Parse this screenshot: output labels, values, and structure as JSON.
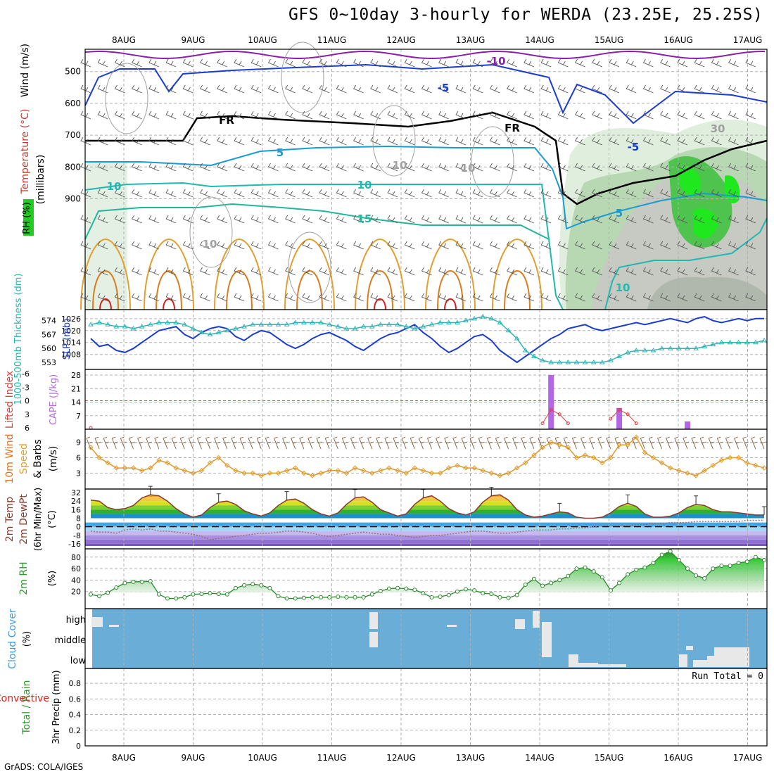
{
  "title": "GFS 0~10day 3-hourly for WERDA (23.25E, 25.25S)",
  "credit": "GrADS: COLA/IGES",
  "chart_data": {
    "type": "meteogram",
    "dates": [
      "8AUG",
      "9AUG",
      "10AUG",
      "11AUG",
      "12AUG",
      "13AUG",
      "14AUG",
      "15AUG",
      "16AUG",
      "17AUG"
    ],
    "panels": [
      {
        "id": "upper_air",
        "type": "contour",
        "ylabels": [
          "Wind (m/s)",
          "Temperature (°C)",
          "RH (%)",
          "(millibars)"
        ],
        "yticks": [
          500,
          600,
          700,
          800,
          900
        ],
        "contour_labels": [
          "-10",
          "-5",
          "FR",
          "FR",
          "-5",
          "5",
          "5",
          "10",
          "10",
          "15",
          "10",
          "10",
          "10",
          "30",
          "10"
        ]
      },
      {
        "id": "slp_thickness",
        "type": "line",
        "ylabel_left": "1000-500mb Thickness (dm)",
        "ylabel_right": "SLP (mb)",
        "yticks_left": [
          553,
          560,
          567,
          574
        ],
        "yticks_right": [
          1008,
          1014,
          1020,
          1026
        ],
        "series": [
          {
            "name": "SLP (mb)",
            "color": "#1a3ccf",
            "values": [
              1016,
              1012,
              1013,
              1010,
              1009,
              1011,
              1014,
              1017,
              1020,
              1021,
              1022,
              1018,
              1016,
              1019,
              1021,
              1022,
              1021,
              1017,
              1015,
              1018,
              1020,
              1019,
              1016,
              1013,
              1011,
              1013,
              1016,
              1018,
              1019,
              1017,
              1015,
              1012,
              1010,
              1013,
              1016,
              1018,
              1019,
              1021,
              1023,
              1019,
              1016,
              1012,
              1009,
              1011,
              1014,
              1017,
              1018,
              1015,
              1010,
              1007,
              1004,
              1007,
              1010,
              1013,
              1016,
              1018,
              1021,
              1022,
              1023,
              1021,
              1020,
              1021,
              1022,
              1023,
              1024,
              1023,
              1024,
              1025,
              1026,
              1025,
              1024,
              1026,
              1027,
              1025,
              1024,
              1025,
              1026,
              1025,
              1026,
              1026
            ]
          },
          {
            "name": "1000-500mb Thickness (dm)",
            "color": "#33b3b3",
            "values": [
              572,
              573,
              572,
              571,
              571,
              570,
              571,
              572,
              573,
              573,
              573,
              572,
              570,
              568,
              567,
              568,
              569,
              570,
              571,
              572,
              572,
              572,
              572,
              572,
              573,
              573,
              573,
              573,
              572,
              571,
              570,
              570,
              571,
              571,
              572,
              572,
              572,
              571,
              570,
              571,
              572,
              573,
              573,
              573,
              574,
              575,
              576,
              575,
              573,
              569,
              565,
              559,
              556,
              554,
              553,
              553,
              553,
              553,
              553,
              553,
              553,
              554,
              556,
              558,
              559,
              559,
              559,
              560,
              560,
              560,
              560,
              560,
              561,
              562,
              563,
              563,
              563,
              563,
              563,
              564
            ]
          }
        ]
      },
      {
        "id": "cape_li",
        "type": "bar+line",
        "ylabel_left": "Lifted Index",
        "ylabel_right": "CAPE (J/kg)",
        "yticks_left": [
          "-6",
          "-3",
          "0",
          "3",
          "6"
        ],
        "yticks_right": [
          7,
          14,
          21,
          28
        ],
        "cape_bars": [
          {
            "index": 54,
            "value": 28
          },
          {
            "index": 62,
            "value": 11
          },
          {
            "index": 70,
            "value": 4
          }
        ],
        "lifted_index_points": [
          {
            "index": 0,
            "value": 6
          },
          {
            "index": 53,
            "value": 5
          },
          {
            "index": 54,
            "value": 2
          },
          {
            "index": 55,
            "value": 3
          },
          {
            "index": 56,
            "value": 5
          },
          {
            "index": 61,
            "value": 4
          },
          {
            "index": 62,
            "value": 2
          },
          {
            "index": 63,
            "value": 3
          },
          {
            "index": 64,
            "value": 5
          }
        ]
      },
      {
        "id": "wind10m",
        "type": "line",
        "ylabel": "10m Wind Speed & Barbs (m/s)",
        "yticks": [
          3,
          6,
          9
        ],
        "series": [
          {
            "name": "10m Wind Speed",
            "color": "#e09a2a",
            "values": [
              8,
              6,
              5,
              4,
              4,
              4,
              3.5,
              4,
              5.5,
              5,
              4,
              3.5,
              3,
              3.5,
              5,
              6,
              4.5,
              3.5,
              3,
              3,
              2.5,
              3,
              3,
              3.5,
              4,
              3,
              2.5,
              3,
              3.5,
              3.5,
              3,
              4,
              3.5,
              3,
              3.5,
              4,
              3.5,
              3,
              4,
              3.5,
              3,
              3,
              4,
              4.5,
              4,
              4,
              3.5,
              3,
              2.5,
              3,
              4,
              5,
              6.5,
              8,
              9,
              8.5,
              8,
              6,
              6.5,
              6,
              5,
              6,
              8.5,
              8.5,
              10,
              7,
              6,
              5,
              4,
              3.5,
              3,
              2.5,
              3.5,
              4.5,
              5.5,
              6,
              6,
              5,
              4.5,
              4
            ]
          }
        ]
      },
      {
        "id": "temp_dewpt",
        "type": "area",
        "ylabel": "2m Temp / 2m DewPt (6hr Min/Max) (°C)",
        "yticks": [
          -16,
          -8,
          0,
          8,
          16,
          24,
          32
        ],
        "series": [
          {
            "name": "2m Temp",
            "color": "#8a3a2a",
            "values": [
              25,
              24,
              18,
              16,
              17,
              20,
              27,
              30,
              29,
              24,
              17,
              12,
              9,
              11,
              18,
              23,
              24,
              21,
              15,
              12,
              10,
              13,
              20,
              25,
              26,
              22,
              16,
              12,
              10,
              13,
              21,
              27,
              28,
              23,
              16,
              13,
              10,
              12,
              21,
              27,
              29,
              24,
              17,
              13,
              11,
              14,
              23,
              29,
              30,
              25,
              16,
              11,
              9,
              10,
              12,
              14,
              13,
              9,
              8,
              8,
              9,
              13,
              19,
              22,
              19,
              12,
              9,
              9,
              10,
              13,
              18,
              21,
              20,
              16,
              14,
              14,
              13,
              12,
              11,
              11
            ]
          },
          {
            "name": "2m DewPt",
            "color": "#9a7070",
            "values": [
              -4,
              -5,
              -5,
              -6,
              -3,
              -2,
              -3,
              -2,
              -4,
              -4,
              -5,
              -6,
              -7,
              -9,
              -12,
              -11,
              -10,
              -9,
              -8,
              -7,
              -6,
              -6,
              -5,
              -4,
              -4,
              -5,
              -6,
              -8,
              -9,
              -8,
              -7,
              -6,
              -5,
              -6,
              -7,
              -7,
              -8,
              -9,
              -10,
              -9,
              -8,
              -8,
              -7,
              -6,
              -5,
              -4,
              -4,
              -5,
              -6,
              -6,
              -5,
              -4,
              -3,
              -3,
              -3,
              -2,
              -2,
              -1,
              -1,
              0,
              1,
              1,
              1,
              1,
              2,
              2,
              3,
              3,
              4,
              4,
              4,
              5,
              5,
              5,
              5,
              5,
              5,
              6,
              6,
              6
            ]
          }
        ]
      },
      {
        "id": "rh2m",
        "type": "area",
        "ylabel": "2m RH (%)",
        "yticks": [
          20,
          40,
          60,
          80
        ],
        "series": [
          {
            "name": "2m RH",
            "color": "#2a8a2a",
            "values": [
              15,
              12,
              18,
              27,
              35,
              37,
              37,
              38,
              15,
              8,
              8,
              10,
              15,
              16,
              17,
              16,
              15,
              26,
              31,
              33,
              31,
              26,
              12,
              8,
              8,
              9,
              10,
              10,
              10,
              11,
              10,
              10,
              10,
              15,
              21,
              25,
              26,
              25,
              23,
              17,
              10,
              11,
              14,
              20,
              24,
              22,
              17,
              16,
              10,
              9,
              14,
              32,
              42,
              30,
              35,
              40,
              47,
              60,
              62,
              55,
              45,
              22,
              35,
              50,
              58,
              62,
              70,
              84,
              90,
              75,
              60,
              48,
              43,
              60,
              65,
              65,
              70,
              72,
              80,
              75
            ]
          }
        ]
      },
      {
        "id": "cloud",
        "type": "heatmap",
        "ylabel": "Cloud Cover (%)",
        "levels": [
          "high",
          "middle",
          "low"
        ]
      },
      {
        "id": "precip",
        "type": "bar",
        "ylabel_left": "Total / Rain / Convective",
        "ylabel": "3hr Precip (mm)",
        "yticks": [
          "0",
          "0.2",
          "0.4",
          "0.6",
          "0.8"
        ],
        "run_total": "Run Total = 0"
      }
    ]
  }
}
